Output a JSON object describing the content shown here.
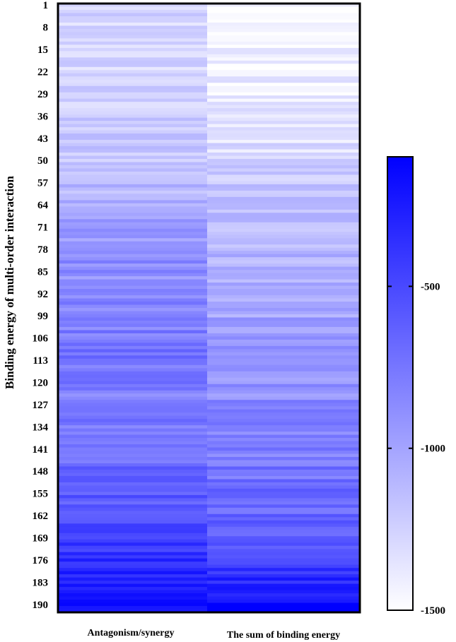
{
  "chart_data": {
    "type": "heatmap",
    "ylabel": "Binding energy of multi-order interaction",
    "columns": [
      "Antagonism/synergy",
      "The sum of binding energy"
    ],
    "row_count": 192,
    "y_tick_labels": [
      "1",
      "8",
      "15",
      "22",
      "29",
      "36",
      "43",
      "50",
      "57",
      "64",
      "71",
      "78",
      "85",
      "92",
      "99",
      "106",
      "113",
      "120",
      "127",
      "134",
      "141",
      "148",
      "155",
      "162",
      "169",
      "176",
      "183",
      "190"
    ],
    "colorbar": {
      "min": -1500,
      "max": -100,
      "ticks": [
        -500,
        -1000,
        -1500
      ],
      "tick_labels": [
        "-500",
        "-1000",
        "-1500"
      ],
      "color_low": "#ffffff",
      "color_high": "#0000ff"
    },
    "column_profiles": [
      {
        "name": "Antagonism/synergy",
        "row_start": [
          1,
          36,
          43,
          57,
          64,
          71,
          78,
          99,
          113,
          120,
          141,
          155,
          169,
          183,
          192
        ],
        "value_start": [
          -1300,
          -1250,
          -1200,
          -1150,
          -1000,
          -950,
          -900,
          -850,
          -700,
          -800,
          -750,
          -600,
          -450,
          -300,
          -150
        ]
      },
      {
        "name": "The sum of binding energy",
        "row_start": [
          1,
          36,
          57,
          64,
          99,
          120,
          141,
          169,
          183,
          192
        ],
        "value_start": [
          -1470,
          -1400,
          -1200,
          -1150,
          -1000,
          -900,
          -800,
          -600,
          -300,
          -100
        ]
      }
    ],
    "variation_amplitude": 130
  }
}
